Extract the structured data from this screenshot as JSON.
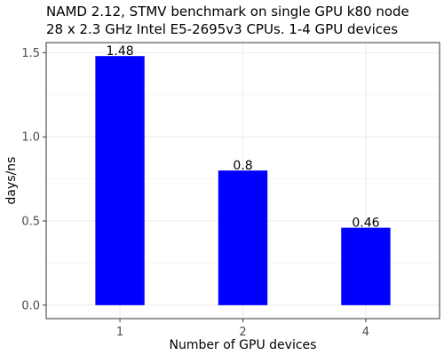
{
  "chart_data": {
    "type": "bar",
    "title": "NAMD 2.12, STMV benchmark on single GPU k80 node",
    "subtitle": "28 x 2.3 GHz Intel E5-2695v3 CPUs. 1-4 GPU devices",
    "xlabel": "Number of GPU devices",
    "ylabel": "days/ns",
    "categories": [
      "1",
      "2",
      "4"
    ],
    "values": [
      1.48,
      0.8,
      0.46
    ],
    "data_labels": [
      "1.48",
      "0.8",
      "0.46"
    ],
    "ylim": [
      -0.08,
      1.56
    ],
    "yticks": [
      0.0,
      0.5,
      1.0,
      1.5
    ],
    "ytick_labels": [
      "0.0",
      "0.5",
      "1.0",
      "1.5"
    ],
    "bar_color": "#0000ff",
    "grid": true,
    "legend": "none"
  }
}
